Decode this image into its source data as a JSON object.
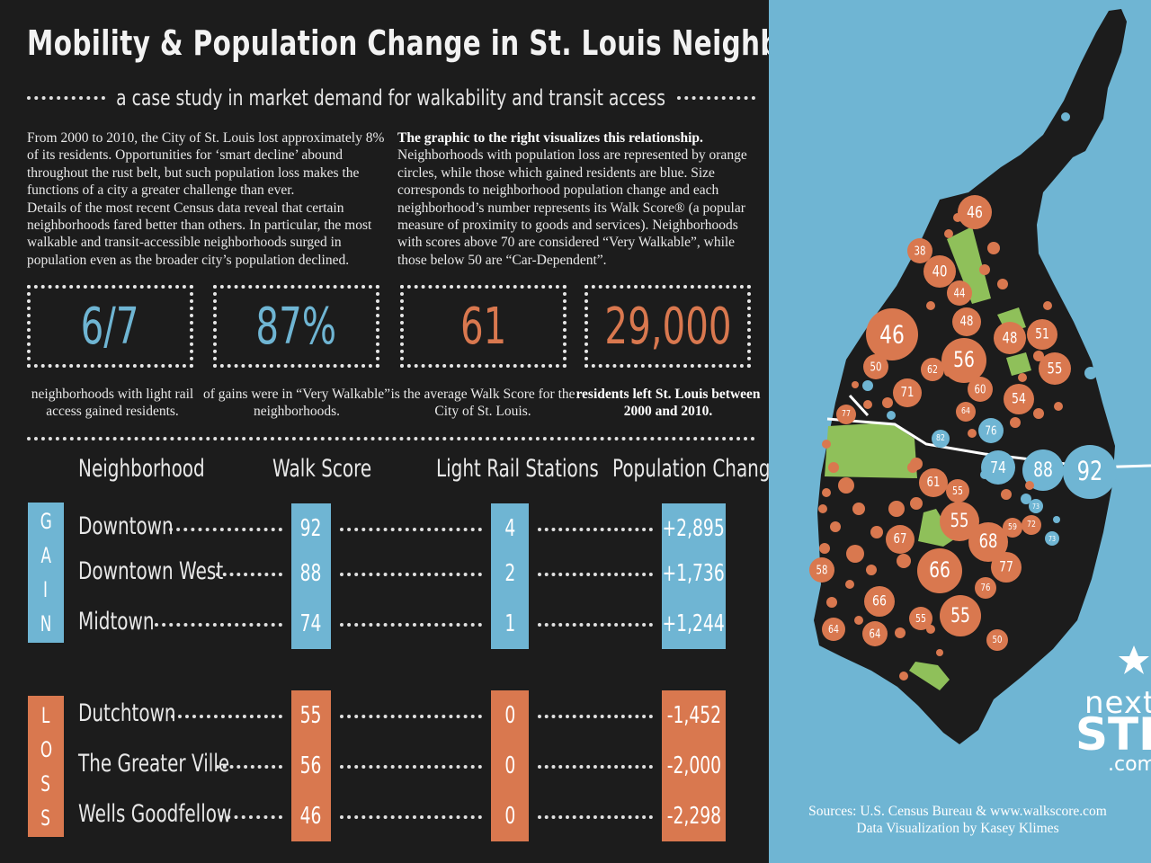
{
  "header": {
    "title": "Mobility & Population Change in St. Louis Neighborhoods",
    "subtitle": "a case study in market demand for walkability and transit access"
  },
  "intro": {
    "left_paragraph_1": "From 2000 to 2010, the City of St. Louis lost approximately 8% of its residents. Opportunities for ‘smart decline’ abound throughout the rust belt, but such population loss makes the functions of a city a greater challenge than ever.",
    "left_paragraph_2": "Details of the most recent Census data reveal that certain neighborhoods fared better than others. In particular, the most walkable and transit-accessible neighborhoods surged in population even as the broader city’s population declined.",
    "right_lead": "The graphic to the right visualizes this relationship.",
    "right_body": "Neighborhoods with population loss are represented by orange circles, while those which gained residents are blue. Size corresponds to neighborhood population change and each neighborhood’s number represents its Walk Score® (a popular measure of proximity to goods and services). Neighborhoods with scores above 70 are considered “Very Walkable”, while those below 50 are “Car-Dependent”."
  },
  "stats": [
    {
      "value": "6/7",
      "caption": "neighborhoods with light rail access gained residents.",
      "color": "#6fb5d3"
    },
    {
      "value": "87%",
      "caption": "of gains were in “Very Walkable” neighborhoods.",
      "color": "#6fb5d3"
    },
    {
      "value": "61",
      "caption": "is the average Walk Score for the City of St. Louis.",
      "color": "#d9784f"
    },
    {
      "value": "29,000",
      "caption": "residents left St. Louis between 2000 and 2010.",
      "color": "#d9784f"
    }
  ],
  "table": {
    "headers": [
      "Neighborhood",
      "Walk Score",
      "Light Rail Stations",
      "Population Change"
    ],
    "gain_label": "GAIN",
    "loss_label": "LOSS",
    "gain_rows": [
      {
        "name": "Downtown",
        "walk": "92",
        "rail": "4",
        "change": "+2,895"
      },
      {
        "name": "Downtown West",
        "walk": "88",
        "rail": "2",
        "change": "+1,736"
      },
      {
        "name": "Midtown",
        "walk": "74",
        "rail": "1",
        "change": "+1,244"
      }
    ],
    "loss_rows": [
      {
        "name": "Dutchtown",
        "walk": "55",
        "rail": "0",
        "change": "-1,452"
      },
      {
        "name": "The Greater Ville",
        "walk": "56",
        "rail": "0",
        "change": "-2,000"
      },
      {
        "name": "Wells Goodfellow",
        "walk": "46",
        "rail": "0",
        "change": "-2,298"
      }
    ]
  },
  "map": {
    "blue_color": "#6fb5d3",
    "orange_color": "#d9784f",
    "park_color": "#8fc05a",
    "land_color": "#1c1c1c",
    "gain_circles": [
      {
        "label": "92",
        "gain": 2895
      },
      {
        "label": "88",
        "gain": 1736
      },
      {
        "label": "74",
        "gain": 1244
      },
      {
        "label": "76"
      },
      {
        "label": "82"
      },
      {
        "label": "73"
      },
      {
        "label": "73"
      }
    ],
    "loss_circles": [
      {
        "label": "46"
      },
      {
        "label": "38"
      },
      {
        "label": "40"
      },
      {
        "label": "44"
      },
      {
        "label": "48"
      },
      {
        "label": "46"
      },
      {
        "label": "48"
      },
      {
        "label": "51"
      },
      {
        "label": "56"
      },
      {
        "label": "50"
      },
      {
        "label": "62"
      },
      {
        "label": "55"
      },
      {
        "label": "71"
      },
      {
        "label": "60"
      },
      {
        "label": "54"
      },
      {
        "label": "64"
      },
      {
        "label": "77"
      },
      {
        "label": "61"
      },
      {
        "label": "55"
      },
      {
        "label": "55"
      },
      {
        "label": "59"
      },
      {
        "label": "72"
      },
      {
        "label": "67"
      },
      {
        "label": "68"
      },
      {
        "label": "66"
      },
      {
        "label": "77"
      },
      {
        "label": "58"
      },
      {
        "label": "76"
      },
      {
        "label": "66"
      },
      {
        "label": "55"
      },
      {
        "label": "55"
      },
      {
        "label": "64"
      },
      {
        "label": "64"
      },
      {
        "label": "50"
      }
    ]
  },
  "logo": {
    "line1": "next",
    "line2": "STL",
    "line3": ".com"
  },
  "footer": {
    "sources": "Sources: U.S. Census Bureau & www.walkscore.com",
    "credit": "Data Visualization by Kasey Klimes"
  }
}
